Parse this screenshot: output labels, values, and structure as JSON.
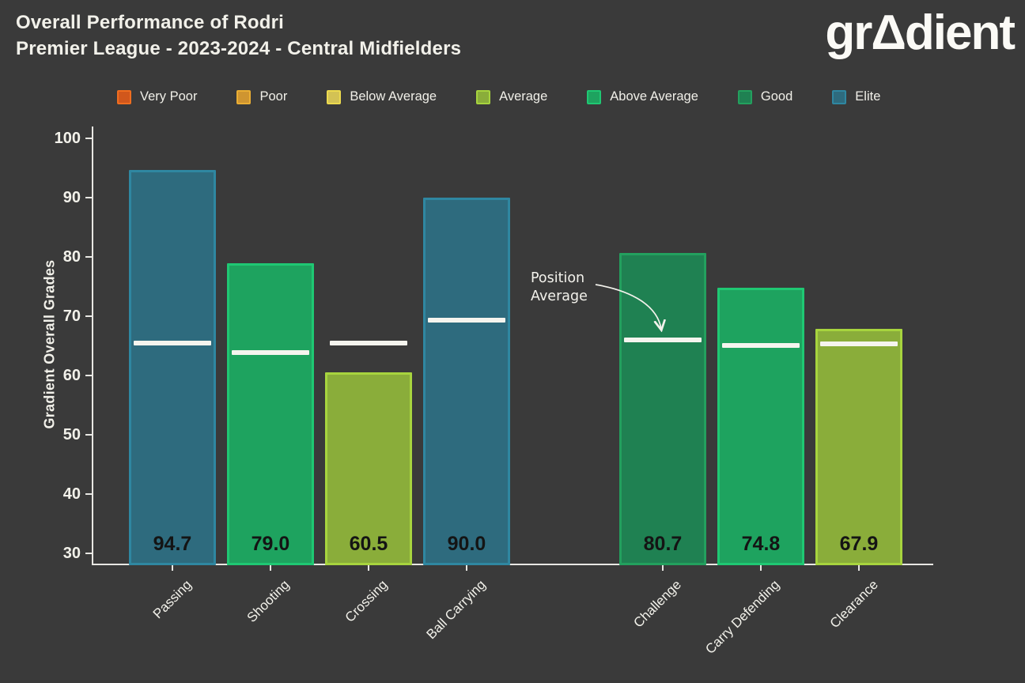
{
  "header": {
    "title_line1": "Overall Performance of Rodri",
    "title_line2": "Premier League - 2023-2024 - Central Midfielders",
    "logo_text": "grΔdient"
  },
  "chart_data": {
    "type": "bar",
    "title": "Overall Performance of Rodri",
    "subtitle": "Premier League - 2023-2024 - Central Midfielders",
    "ylabel": "Gradient Overall Grades",
    "xlabel": "",
    "ylim": [
      30,
      100
    ],
    "yticks": [
      30,
      40,
      50,
      60,
      70,
      80,
      90,
      100
    ],
    "grid": false,
    "legend_position": "top",
    "categories": [
      "Passing",
      "Shooting",
      "Crossing",
      "Ball Carrying",
      "Challenge",
      "Carry Defending",
      "Clearance"
    ],
    "values": [
      94.7,
      79.0,
      60.5,
      90.0,
      80.7,
      74.8,
      67.9
    ],
    "grades": [
      "Elite",
      "Above Average",
      "Average",
      "Elite",
      "Good",
      "Above Average",
      "Average"
    ],
    "position_average": [
      65.5,
      63.9,
      65.5,
      69.3,
      66.0,
      65.1,
      65.3
    ],
    "slots": [
      0,
      1,
      2,
      3,
      5,
      6,
      7
    ],
    "annotation": {
      "text": "Position\nAverage"
    },
    "legend": [
      "Very Poor",
      "Poor",
      "Below Average",
      "Average",
      "Above Average",
      "Good",
      "Elite"
    ],
    "palette": {
      "Very Poor": {
        "fill": "#d1571c",
        "edge": "#f06d1f"
      },
      "Poor": {
        "fill": "#cf9530",
        "edge": "#eaae33"
      },
      "Below Average": {
        "fill": "#d3c254",
        "edge": "#ecda4e"
      },
      "Average": {
        "fill": "#8aad3a",
        "edge": "#a7d43e"
      },
      "Above Average": {
        "fill": "#1ea35f",
        "edge": "#1fc873"
      },
      "Good": {
        "fill": "#1f8152",
        "edge": "#23a05e"
      },
      "Elite": {
        "fill": "#2e6b7e",
        "edge": "#2f87a1"
      }
    },
    "bar_value_label_color": "#141414",
    "background": "#3a3a3a",
    "axis_color": "#e8e7e3",
    "position_average_line_color": "#f5f4ee"
  }
}
